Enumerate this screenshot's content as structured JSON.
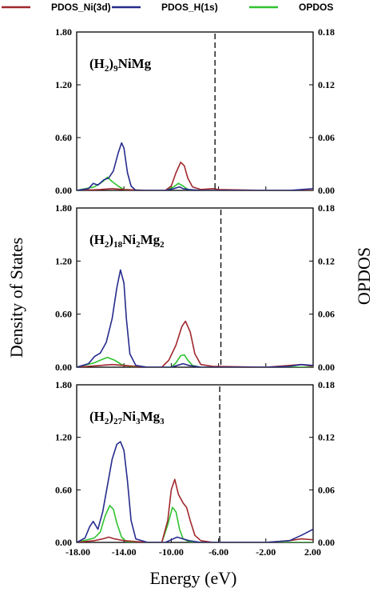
{
  "chart_data": {
    "type": "line",
    "legend_position": "top",
    "xlabel": "Energy (eV)",
    "ylabel_left": "Density of States",
    "ylabel_right": "OPDOS",
    "xlim": [
      -18,
      2
    ],
    "xticks": [
      "-18.00",
      "-14.00",
      "-10.00",
      "-6.00",
      "-2.00",
      "2.00"
    ],
    "xtick_values": [
      -18,
      -14,
      -10,
      -6,
      -2,
      2
    ],
    "ylim_left": [
      0,
      1.8
    ],
    "ylim_right": [
      0,
      0.18
    ],
    "yticks_left": [
      "0.00",
      "0.60",
      "1.20",
      "1.80"
    ],
    "yticks_left_values": [
      0,
      0.6,
      1.2,
      1.8
    ],
    "yticks_right": [
      "0.00",
      "0.06",
      "0.12",
      "0.18"
    ],
    "yticks_right_values": [
      0,
      0.06,
      0.12,
      0.18
    ],
    "legend": [
      {
        "key": "ni",
        "name": "PDOS_Ni(3d)",
        "color": "#a0282d"
      },
      {
        "key": "h",
        "name": "PDOS_H(1s)",
        "color": "#262b8c"
      },
      {
        "key": "op",
        "name": "OPDOS",
        "color": "#2fc22f"
      }
    ],
    "panels": [
      {
        "label": {
          "main1": "(H",
          "sub1": "2",
          "main2": ")",
          "sub2": "9",
          "main3": "NiMg"
        },
        "fermi": -6.3,
        "series": {
          "h": [
            [
              -18,
              0
            ],
            [
              -17,
              0.02
            ],
            [
              -16.6,
              0.08
            ],
            [
              -16.2,
              0.06
            ],
            [
              -15.7,
              0.12
            ],
            [
              -15.3,
              0.14
            ],
            [
              -14.9,
              0.22
            ],
            [
              -14.5,
              0.42
            ],
            [
              -14.2,
              0.54
            ],
            [
              -14.0,
              0.48
            ],
            [
              -13.7,
              0.2
            ],
            [
              -13.4,
              0.05
            ],
            [
              -13,
              0
            ],
            [
              -10.5,
              0
            ],
            [
              -9.8,
              0.02
            ],
            [
              -9.3,
              0.04
            ],
            [
              -9.0,
              0.02
            ],
            [
              -8.5,
              0.01
            ],
            [
              -7.5,
              0
            ],
            [
              -6.2,
              0
            ],
            [
              -2,
              0
            ],
            [
              0,
              0
            ],
            [
              1,
              0.01
            ],
            [
              2,
              0.02
            ]
          ],
          "ni": [
            [
              -18,
              0
            ],
            [
              -16,
              0.01
            ],
            [
              -15,
              0.02
            ],
            [
              -14,
              0.01
            ],
            [
              -12,
              0
            ],
            [
              -10.5,
              0
            ],
            [
              -10,
              0.05
            ],
            [
              -9.6,
              0.2
            ],
            [
              -9.2,
              0.32
            ],
            [
              -8.9,
              0.28
            ],
            [
              -8.6,
              0.14
            ],
            [
              -8.2,
              0.04
            ],
            [
              -7.5,
              0.01
            ],
            [
              -6.5,
              0.02
            ],
            [
              -6,
              0.01
            ],
            [
              -2,
              0
            ],
            [
              2,
              0
            ]
          ],
          "op": [
            [
              -18,
              0
            ],
            [
              -16.5,
              0.04
            ],
            [
              -15.8,
              0.1
            ],
            [
              -15.4,
              0.15
            ],
            [
              -15.0,
              0.1
            ],
            [
              -14.5,
              0.05
            ],
            [
              -14,
              0.01
            ],
            [
              -12,
              0
            ],
            [
              -10.5,
              0
            ],
            [
              -9.8,
              0.04
            ],
            [
              -9.4,
              0.08
            ],
            [
              -9.0,
              0.05
            ],
            [
              -8.6,
              0.01
            ],
            [
              -7.5,
              0
            ],
            [
              2,
              0
            ]
          ]
        }
      },
      {
        "label": {
          "main1": "(H",
          "sub1": "2",
          "main2": ")",
          "sub2": "18",
          "main3": "Ni",
          "sub3": "2",
          "main4": "Mg",
          "sub4": "2"
        },
        "fermi": -5.8,
        "series": {
          "h": [
            [
              -18,
              0
            ],
            [
              -17,
              0.04
            ],
            [
              -16.5,
              0.12
            ],
            [
              -16.0,
              0.16
            ],
            [
              -15.5,
              0.28
            ],
            [
              -15.0,
              0.55
            ],
            [
              -14.6,
              0.9
            ],
            [
              -14.3,
              1.1
            ],
            [
              -14.0,
              0.95
            ],
            [
              -13.8,
              0.55
            ],
            [
              -13.5,
              0.15
            ],
            [
              -13,
              0.02
            ],
            [
              -12,
              0
            ],
            [
              -10,
              0
            ],
            [
              -9.5,
              0.02
            ],
            [
              -9,
              0.04
            ],
            [
              -8.5,
              0.02
            ],
            [
              -7.5,
              0
            ],
            [
              -2,
              0
            ],
            [
              0,
              0.01
            ],
            [
              1,
              0.03
            ],
            [
              2,
              0.02
            ]
          ],
          "ni": [
            [
              -18,
              0
            ],
            [
              -16,
              0.02
            ],
            [
              -15,
              0.03
            ],
            [
              -14,
              0.02
            ],
            [
              -12,
              0
            ],
            [
              -10.8,
              0
            ],
            [
              -10.2,
              0.08
            ],
            [
              -9.6,
              0.25
            ],
            [
              -9.1,
              0.46
            ],
            [
              -8.8,
              0.52
            ],
            [
              -8.4,
              0.4
            ],
            [
              -8.0,
              0.15
            ],
            [
              -7.5,
              0.03
            ],
            [
              -6.5,
              0.01
            ],
            [
              -2,
              0
            ],
            [
              1,
              0.03
            ],
            [
              2,
              0.01
            ]
          ],
          "op": [
            [
              -18,
              0
            ],
            [
              -16.5,
              0.05
            ],
            [
              -16,
              0.08
            ],
            [
              -15.4,
              0.11
            ],
            [
              -14.8,
              0.08
            ],
            [
              -14.2,
              0.03
            ],
            [
              -13.5,
              0.01
            ],
            [
              -12,
              0
            ],
            [
              -10,
              0
            ],
            [
              -9.6,
              0.05
            ],
            [
              -9.2,
              0.13
            ],
            [
              -8.9,
              0.14
            ],
            [
              -8.6,
              0.08
            ],
            [
              -8.2,
              0.02
            ],
            [
              -7.5,
              0
            ],
            [
              2,
              0
            ]
          ]
        }
      },
      {
        "label": {
          "main1": "(H",
          "sub1": "2",
          "main2": ")",
          "sub2": "27",
          "main3": "Ni",
          "sub3": "3",
          "main4": "Mg",
          "sub4": "3"
        },
        "fermi": -5.9,
        "series": {
          "h": [
            [
              -18,
              0
            ],
            [
              -17.3,
              0.05
            ],
            [
              -16.9,
              0.18
            ],
            [
              -16.6,
              0.24
            ],
            [
              -16.2,
              0.15
            ],
            [
              -15.8,
              0.35
            ],
            [
              -15.4,
              0.65
            ],
            [
              -15.0,
              0.95
            ],
            [
              -14.6,
              1.12
            ],
            [
              -14.3,
              1.15
            ],
            [
              -14.0,
              1.05
            ],
            [
              -13.7,
              0.7
            ],
            [
              -13.4,
              0.25
            ],
            [
              -13,
              0.04
            ],
            [
              -12,
              0
            ],
            [
              -10.5,
              0
            ],
            [
              -10,
              0.03
            ],
            [
              -9.5,
              0.06
            ],
            [
              -9,
              0.04
            ],
            [
              -8.5,
              0.02
            ],
            [
              -7.5,
              0
            ],
            [
              -2,
              0
            ],
            [
              0,
              0.02
            ],
            [
              1,
              0.08
            ],
            [
              2,
              0.15
            ]
          ],
          "ni": [
            [
              -18,
              0
            ],
            [
              -16.5,
              0.02
            ],
            [
              -15.8,
              0.04
            ],
            [
              -15.3,
              0.06
            ],
            [
              -14.8,
              0.04
            ],
            [
              -14,
              0.02
            ],
            [
              -12,
              0
            ],
            [
              -10.8,
              0
            ],
            [
              -10.3,
              0.25
            ],
            [
              -10.0,
              0.6
            ],
            [
              -9.7,
              0.72
            ],
            [
              -9.4,
              0.55
            ],
            [
              -9.0,
              0.45
            ],
            [
              -8.7,
              0.4
            ],
            [
              -8.4,
              0.25
            ],
            [
              -8.0,
              0.08
            ],
            [
              -7.5,
              0.02
            ],
            [
              -6.5,
              0
            ],
            [
              -2,
              0
            ],
            [
              0,
              0.02
            ],
            [
              1,
              0.04
            ],
            [
              2,
              0.03
            ]
          ],
          "op": [
            [
              -18,
              0
            ],
            [
              -16.5,
              0.05
            ],
            [
              -16,
              0.12
            ],
            [
              -15.6,
              0.3
            ],
            [
              -15.2,
              0.42
            ],
            [
              -14.9,
              0.38
            ],
            [
              -14.6,
              0.22
            ],
            [
              -14.2,
              0.06
            ],
            [
              -13.8,
              0.01
            ],
            [
              -12,
              0
            ],
            [
              -10.8,
              0
            ],
            [
              -10.3,
              0.2
            ],
            [
              -9.9,
              0.4
            ],
            [
              -9.6,
              0.35
            ],
            [
              -9.3,
              0.15
            ],
            [
              -9.0,
              0.04
            ],
            [
              -8.5,
              0.01
            ],
            [
              -7.5,
              0
            ],
            [
              2,
              0
            ]
          ]
        }
      }
    ]
  }
}
